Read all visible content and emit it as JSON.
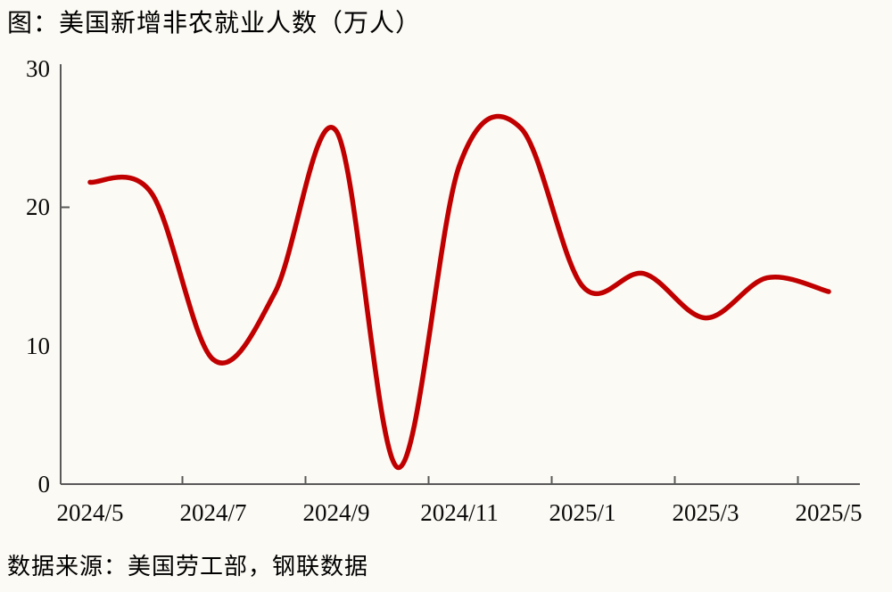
{
  "title": "图：美国新增非农就业人数（万人）",
  "source": "数据来源：美国劳工部，钢联数据",
  "chart_data": {
    "type": "line",
    "title": "美国新增非农就业人数（万人）",
    "categories": [
      "2024/5",
      "2024/6",
      "2024/7",
      "2024/8",
      "2024/9",
      "2024/10",
      "2024/11",
      "2024/12",
      "2025/1",
      "2025/2",
      "2025/3",
      "2025/4",
      "2025/5"
    ],
    "values": [
      21.8,
      21.0,
      9.0,
      13.8,
      25.5,
      1.2,
      23.0,
      25.7,
      14.3,
      15.2,
      12.0,
      14.9,
      13.9
    ],
    "x_tick_labels": [
      "2024/5",
      "2024/7",
      "2024/9",
      "2024/11",
      "2025/1",
      "2025/3",
      "2025/5"
    ],
    "x_tick_label_month_indices": [
      0,
      2,
      4,
      6,
      8,
      10,
      12
    ],
    "y_tick_labels": [
      "0",
      "10",
      "20",
      "30"
    ],
    "y_tick_label_values": [
      0,
      10,
      20,
      30
    ],
    "y_axis_tick_mark_values": [
      20
    ],
    "ylim": [
      0,
      30
    ],
    "xlabel": "",
    "ylabel": "",
    "grid": false,
    "legend": "none",
    "smooth": true,
    "line_color": "#C00000"
  },
  "colors": {
    "background": "#FCFAF4",
    "axis": "#595959",
    "text": "#000000",
    "line": "#C00000"
  }
}
